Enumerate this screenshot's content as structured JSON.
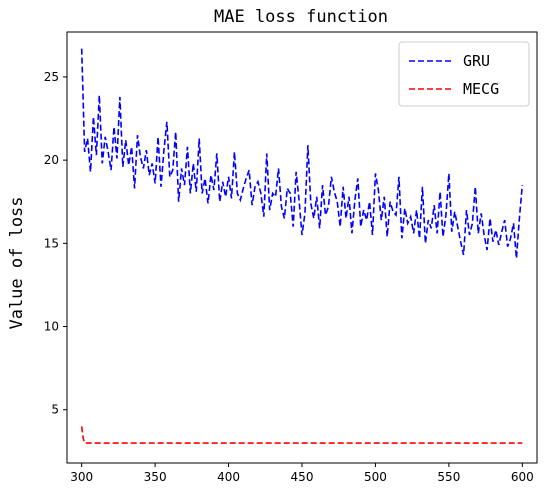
{
  "chart_data": {
    "type": "line",
    "title": "MAE loss function",
    "xlabel": "",
    "ylabel": "Value of loss",
    "xlim": [
      290,
      610
    ],
    "ylim": [
      1.8,
      27.7
    ],
    "xticks": [
      300,
      350,
      400,
      450,
      500,
      550,
      600
    ],
    "yticks": [
      5,
      10,
      15,
      20,
      25
    ],
    "grid": false,
    "legend_position": "top-right",
    "series": [
      {
        "name": "GRU",
        "color": "#0000ff",
        "style": "dashed",
        "x": [
          300,
          302,
          304,
          306,
          308,
          310,
          312,
          314,
          316,
          318,
          320,
          322,
          324,
          326,
          328,
          330,
          332,
          334,
          336,
          338,
          340,
          342,
          344,
          346,
          348,
          350,
          352,
          354,
          356,
          358,
          360,
          362,
          364,
          366,
          368,
          370,
          372,
          374,
          376,
          378,
          380,
          382,
          384,
          386,
          388,
          390,
          392,
          394,
          396,
          398,
          400,
          402,
          404,
          406,
          408,
          410,
          412,
          414,
          416,
          418,
          420,
          422,
          424,
          426,
          428,
          430,
          432,
          434,
          436,
          438,
          440,
          442,
          444,
          446,
          448,
          450,
          452,
          454,
          456,
          458,
          460,
          462,
          464,
          466,
          468,
          470,
          472,
          474,
          476,
          478,
          480,
          482,
          484,
          486,
          488,
          490,
          492,
          494,
          496,
          498,
          500,
          502,
          504,
          506,
          508,
          510,
          512,
          514,
          516,
          518,
          520,
          522,
          524,
          526,
          528,
          530,
          532,
          534,
          536,
          538,
          540,
          542,
          544,
          546,
          548,
          550,
          552,
          554,
          556,
          558,
          560,
          562,
          564,
          566,
          568,
          570,
          572,
          574,
          576,
          578,
          580,
          582,
          584,
          586,
          588,
          590,
          592,
          594,
          596,
          598,
          600
        ],
        "values": [
          26.7,
          20.5,
          21.3,
          19.3,
          22.6,
          20.3,
          23.9,
          19.8,
          21.4,
          20.5,
          19.4,
          22.0,
          20.1,
          23.8,
          19.6,
          21.2,
          19.7,
          20.8,
          18.3,
          21.5,
          20.2,
          19.5,
          20.6,
          19.1,
          19.8,
          18.6,
          21.4,
          18.4,
          20.6,
          22.3,
          19.0,
          19.4,
          21.7,
          17.5,
          19.5,
          18.5,
          20.8,
          18.0,
          19.8,
          18.1,
          21.3,
          18.0,
          18.9,
          17.4,
          19.1,
          18.2,
          20.4,
          17.5,
          18.7,
          17.8,
          19.0,
          17.7,
          20.5,
          18.0,
          17.6,
          18.3,
          18.9,
          19.4,
          17.3,
          18.4,
          18.7,
          18.0,
          16.6,
          20.4,
          17.0,
          18.0,
          17.8,
          19.5,
          17.2,
          16.5,
          18.3,
          18.0,
          16.0,
          19.3,
          17.6,
          15.5,
          16.8,
          20.9,
          17.4,
          16.5,
          17.8,
          15.9,
          18.5,
          16.7,
          17.2,
          19.0,
          18.1,
          17.5,
          16.0,
          18.4,
          16.5,
          17.8,
          15.6,
          17.6,
          18.9,
          16.0,
          17.0,
          16.4,
          17.5,
          15.5,
          19.2,
          18.2,
          16.4,
          17.8,
          15.4,
          17.5,
          16.9,
          16.7,
          19.0,
          15.3,
          17.1,
          16.2,
          16.6,
          15.6,
          17.0,
          15.3,
          18.4,
          15.0,
          16.4,
          15.9,
          17.3,
          15.6,
          18.1,
          15.4,
          16.7,
          19.2,
          15.7,
          16.9,
          16.0,
          15.1,
          14.3,
          17.0,
          15.5,
          16.2,
          18.4,
          15.6,
          16.8,
          15.5,
          14.6,
          16.5,
          15.1,
          15.8,
          14.9,
          15.7,
          16.4,
          14.8,
          15.3,
          16.2,
          14.1,
          16.5,
          18.5
        ]
      },
      {
        "name": "MECG",
        "color": "#ff0000",
        "style": "dashed",
        "x": [
          300,
          301,
          302,
          600
        ],
        "values": [
          4.0,
          3.3,
          3.0,
          3.0
        ]
      }
    ]
  }
}
